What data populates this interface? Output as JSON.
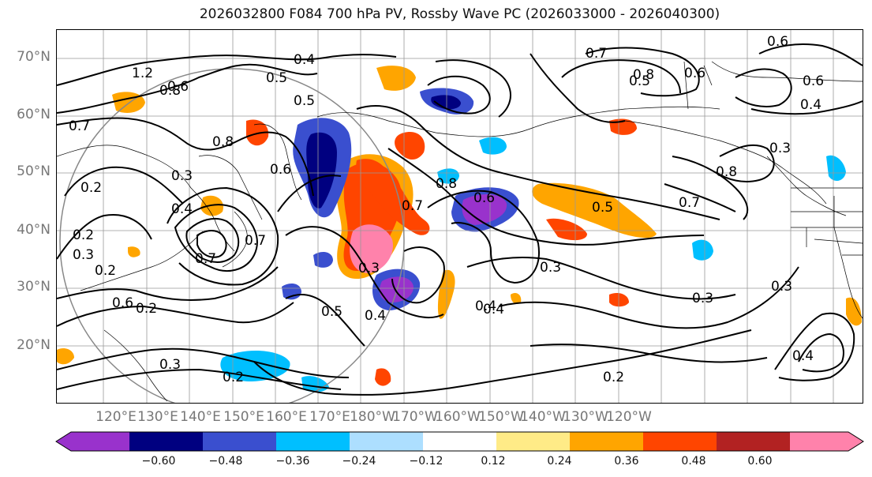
{
  "title": "2026032800 F084 700 hPa PV, Rossby Wave PC (2026033000 - 2026040300)",
  "lat_labels": [
    "70°N",
    "60°N",
    "50°N",
    "40°N",
    "30°N",
    "20°N"
  ],
  "lon_labels": [
    "120°E",
    "130°E",
    "140°E",
    "150°E",
    "160°E",
    "170°E",
    "180°W",
    "170°W",
    "160°W",
    "150°W",
    "140°W",
    "130°W",
    "120°W"
  ],
  "colorbar": {
    "colors": [
      "#9932CC",
      "#000080",
      "#3A4FCF",
      "#00BFFF",
      "#ADDFFF",
      "#FFFFFF",
      "#FFEB87",
      "#FFA500",
      "#FF4500",
      "#B22222",
      "#FF82AB"
    ],
    "tick_labels": [
      "−0.60",
      "−0.48",
      "−0.36",
      "−0.24",
      "−0.12",
      "0.12",
      "0.24",
      "0.36",
      "0.48",
      "0.60"
    ]
  },
  "contour_labels": [
    "0.4",
    "0.5",
    "0.6",
    "0.7",
    "0.8",
    "0.6",
    "0.7",
    "0.3",
    "0.2",
    "0.3",
    "0.2",
    "0.3",
    "0.4",
    "0.5",
    "0.6",
    "0.7",
    "0.8",
    "0.6",
    "0.4",
    "0.3",
    "0.5",
    "0.4",
    "0.5",
    "0.7",
    "0.3",
    "0.2",
    "0.4",
    "0.3",
    "0.4",
    "0.6",
    "0.8",
    "0.4",
    "0.3",
    "0.8",
    "0.7",
    "0.2",
    "1.2",
    "0.8",
    "0.2",
    "0.6",
    "0.6",
    "0.3",
    "0.2",
    "0.7",
    "0.5"
  ]
}
